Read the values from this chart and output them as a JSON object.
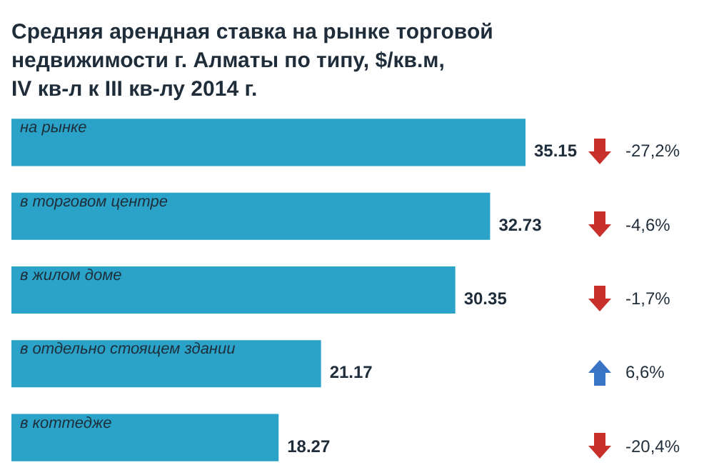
{
  "chart_data": {
    "type": "bar",
    "orientation": "horizontal",
    "title": [
      "Средняя арендная ставка на рынке торговой",
      "недвижимости г. Алматы по типу, $/кв.м,",
      "IV кв-л к III кв-лу 2014 г."
    ],
    "categories": [
      "на рынке",
      "в торговом центре",
      "в жилом доме",
      "в отдельно стоящем здании",
      "в коттедже"
    ],
    "values": [
      35.15,
      32.73,
      30.35,
      21.17,
      18.27
    ],
    "color": "#2ba3c8",
    "data_labels": true,
    "annotations": [
      "-27,2%",
      "-4,6%",
      "-1,7%",
      "6,6%",
      "-20,4%"
    ]
  }
}
